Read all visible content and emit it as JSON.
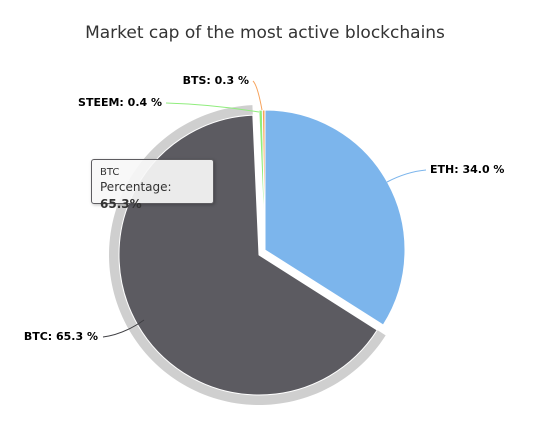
{
  "chart_data": {
    "type": "pie",
    "title": "Market cap of the most active blockchains",
    "slices": [
      {
        "name": "ETH",
        "value": 34.0,
        "label": "ETH: 34.0 %",
        "color": "#7cb5ec"
      },
      {
        "name": "BTC",
        "value": 65.3,
        "label": "BTC: 65.3 %",
        "color": "#5c5b61",
        "selected": true
      },
      {
        "name": "STEEM",
        "value": 0.4,
        "label": "STEEM: 0.4 %",
        "color": "#90ed7d"
      },
      {
        "name": "BTS",
        "value": 0.3,
        "label": "BTS: 0.3 %",
        "color": "#f7a35c"
      }
    ],
    "tooltip": {
      "series": "BTC",
      "metric_label": "Percentage:",
      "value": "65.3%"
    }
  }
}
